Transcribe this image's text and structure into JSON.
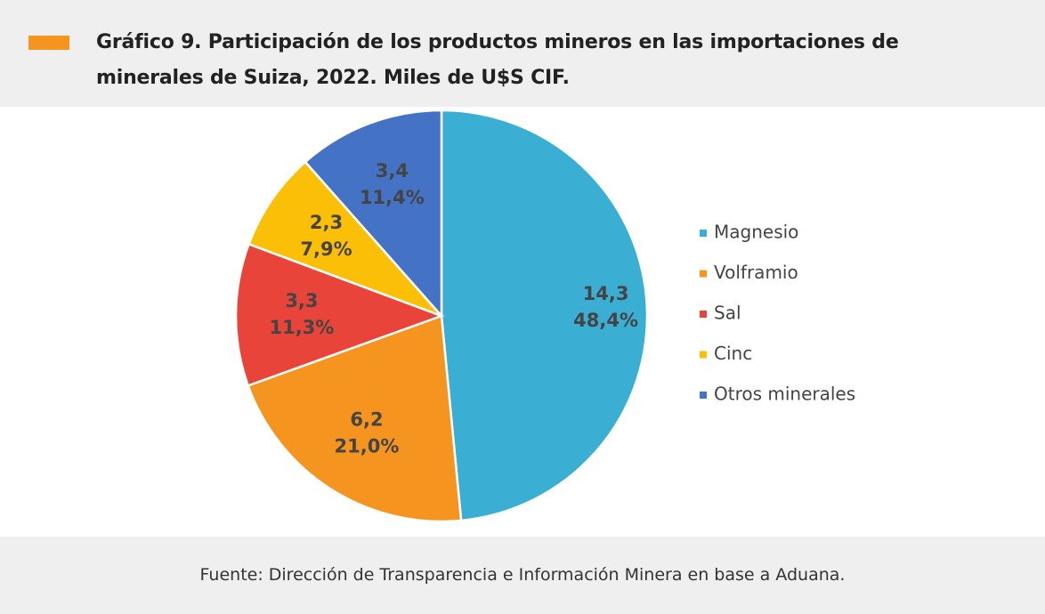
{
  "chart_data": {
    "type": "pie",
    "title": "Gráfico 9. Participación de los productos mineros en las importaciones de minerales de Suiza, 2022. Miles de U$S CIF.",
    "categories": [
      "Magnesio",
      "Volframio",
      "Sal",
      "Cinc",
      "Otros minerales"
    ],
    "values": [
      14.3,
      6.2,
      3.3,
      2.3,
      3.4
    ],
    "value_labels": [
      "14,3",
      "6,2",
      "3,3",
      "2,3",
      "3,4"
    ],
    "shares": [
      48.4,
      21.0,
      11.3,
      7.9,
      11.4
    ],
    "share_labels": [
      "48,4%",
      "21,0%",
      "11,3%",
      "7,9%",
      "11,4%"
    ],
    "colors": [
      "#3aaed3",
      "#f5941f",
      "#e8443a",
      "#fbbf08",
      "#4472c4"
    ],
    "legend": "right",
    "source": "Fuente: Dirección de Transparencia e Información Minera en base a Aduana."
  }
}
